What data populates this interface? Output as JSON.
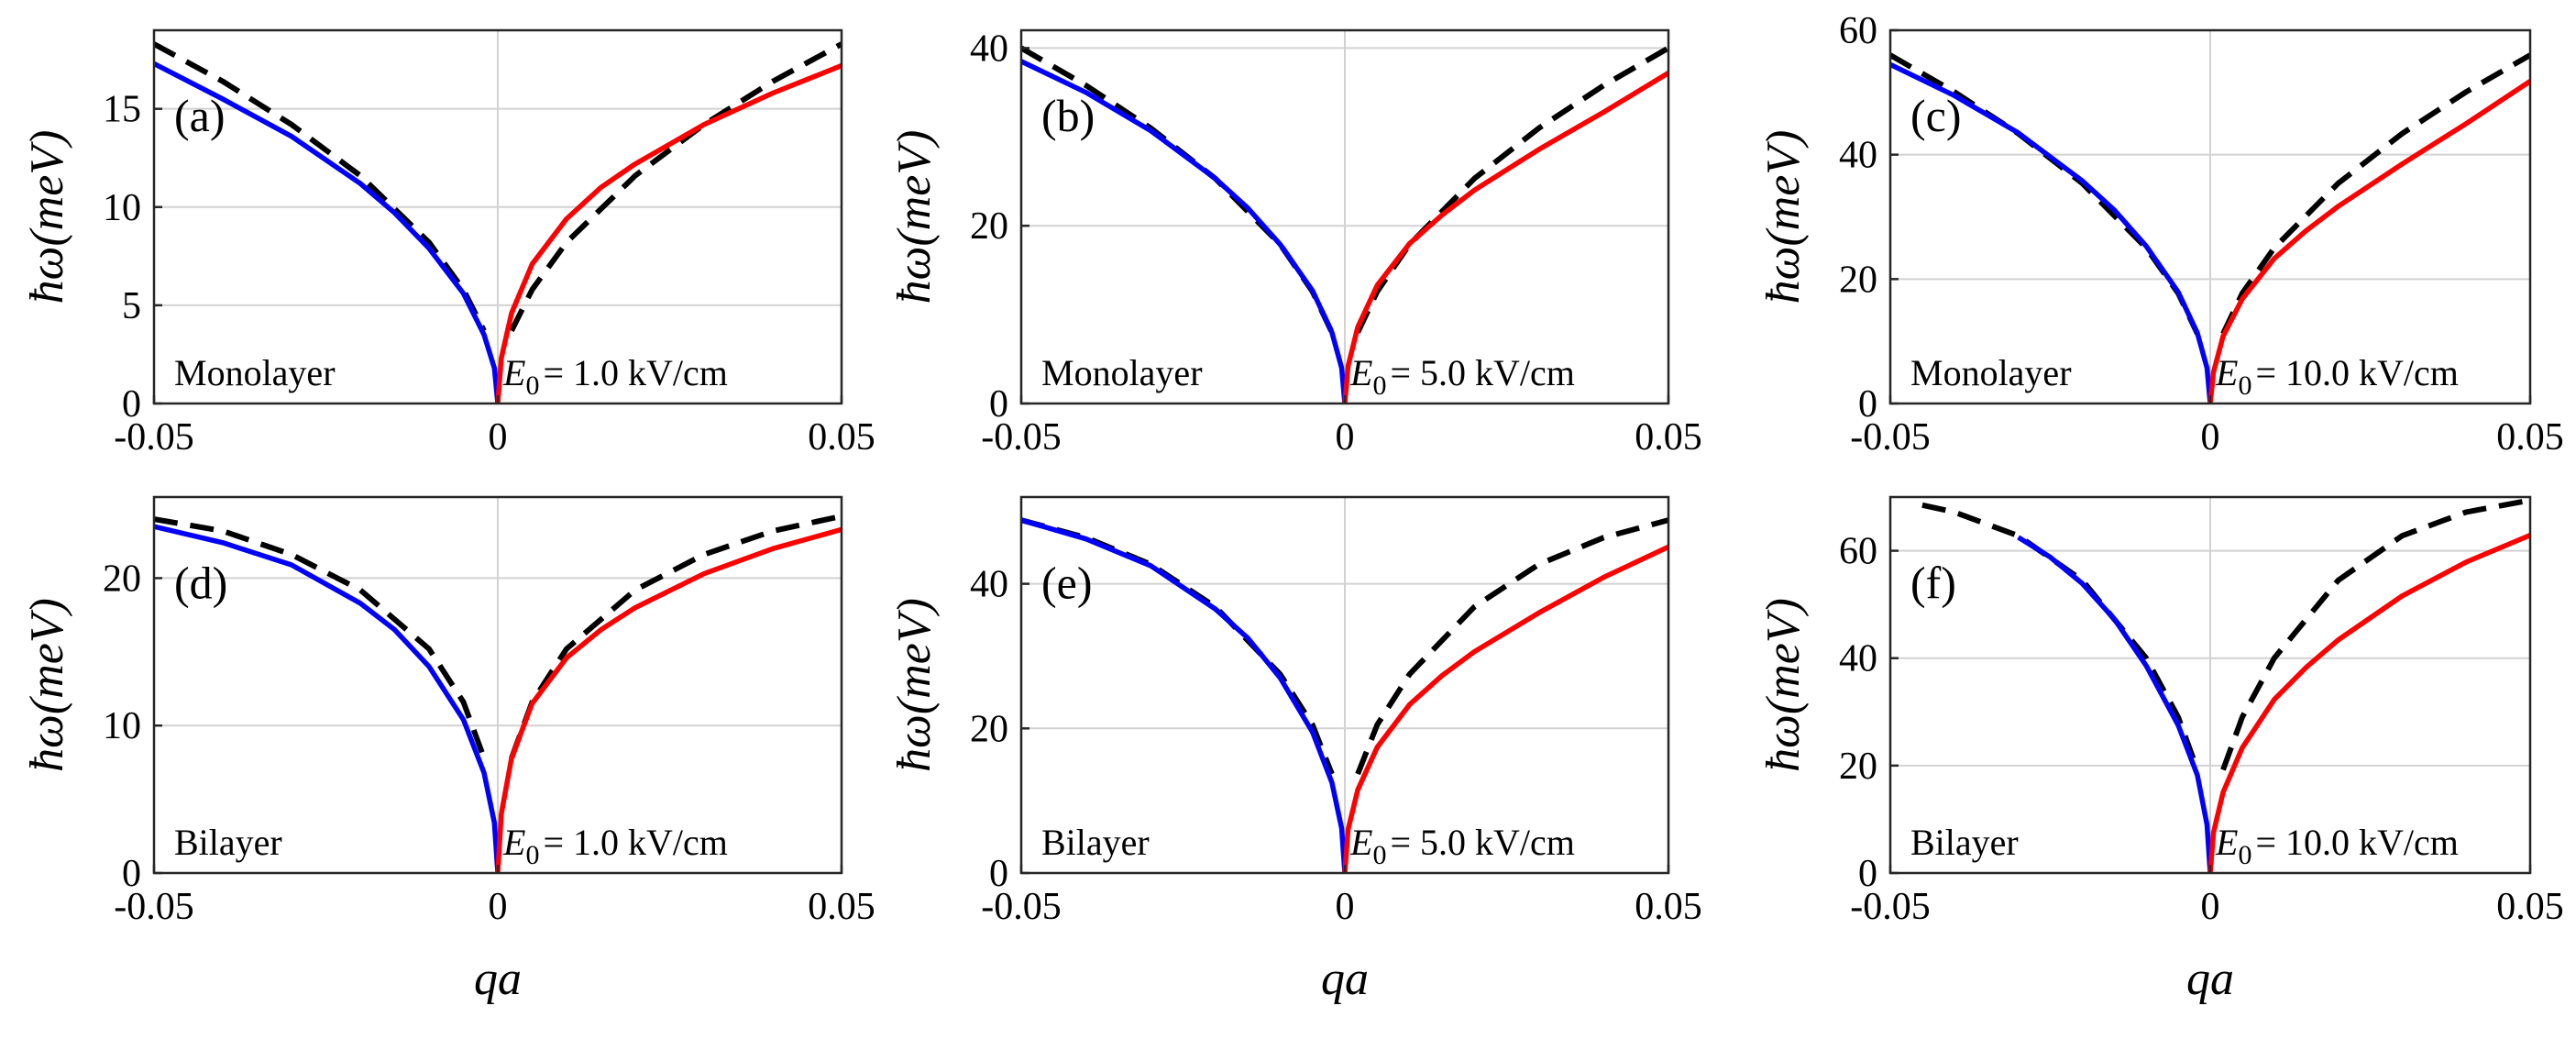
{
  "chart_data": [
    {
      "type": "line",
      "panel_label": "(a)",
      "layer_label": "Monolayer",
      "field_prefix": "E",
      "field_sub": "0",
      "field_text": "= 1.0 kV/cm",
      "ylabel": "ħω(meV)",
      "xlabel": "",
      "xlim": [
        -0.05,
        0.05
      ],
      "ylim": [
        0,
        19
      ],
      "xticks": [
        -0.05,
        0,
        0.05
      ],
      "xtick_labels": [
        "-0.05",
        "0",
        "0.05"
      ],
      "yticks": [
        0,
        5,
        10,
        15
      ],
      "ytick_labels": [
        "0",
        "5",
        "10",
        "15"
      ],
      "grid": true,
      "series": [
        {
          "name": "negative qa branch",
          "color": "#0000ff",
          "style": "solid",
          "x": [
            -0.05,
            -0.04,
            -0.03,
            -0.02,
            -0.015,
            -0.01,
            -0.005,
            -0.002,
            -0.0005,
            0
          ],
          "y": [
            17.3,
            15.5,
            13.6,
            11.2,
            9.7,
            7.9,
            5.6,
            3.5,
            1.8,
            0
          ]
        },
        {
          "name": "positive qa branch",
          "color": "#ff0000",
          "style": "solid",
          "x": [
            0,
            0.0005,
            0.002,
            0.005,
            0.01,
            0.015,
            0.02,
            0.03,
            0.04,
            0.05
          ],
          "y": [
            0,
            2.3,
            4.6,
            7.1,
            9.4,
            11.0,
            12.2,
            14.2,
            15.8,
            17.2
          ]
        },
        {
          "name": "reference left",
          "color": "#000000",
          "style": "dashed",
          "x": [
            -0.05,
            -0.04,
            -0.03,
            -0.02,
            -0.01,
            -0.005,
            -0.002
          ],
          "y": [
            18.3,
            16.4,
            14.2,
            11.6,
            8.2,
            5.8,
            3.7
          ]
        },
        {
          "name": "reference right",
          "color": "#000000",
          "style": "dashed",
          "x": [
            0.002,
            0.005,
            0.01,
            0.02,
            0.03,
            0.04,
            0.05
          ],
          "y": [
            3.7,
            5.8,
            8.2,
            11.6,
            14.2,
            16.4,
            18.3
          ]
        }
      ]
    },
    {
      "type": "line",
      "panel_label": "(b)",
      "layer_label": "Monolayer",
      "field_prefix": "E",
      "field_sub": "0",
      "field_text": "= 5.0 kV/cm",
      "ylabel": "ħω(meV)",
      "xlabel": "",
      "xlim": [
        -0.05,
        0.05
      ],
      "ylim": [
        0,
        42
      ],
      "xticks": [
        -0.05,
        0,
        0.05
      ],
      "xtick_labels": [
        "-0.05",
        "0",
        "0.05"
      ],
      "yticks": [
        0,
        20,
        40
      ],
      "ytick_labels": [
        "0",
        "20",
        "40"
      ],
      "grid": true,
      "series": [
        {
          "name": "negative qa branch",
          "color": "#0000ff",
          "style": "solid",
          "x": [
            -0.05,
            -0.04,
            -0.03,
            -0.02,
            -0.015,
            -0.01,
            -0.005,
            -0.002,
            -0.0005,
            0
          ],
          "y": [
            38.5,
            35.0,
            30.7,
            25.3,
            22.0,
            17.9,
            12.7,
            8.0,
            4.0,
            0
          ]
        },
        {
          "name": "positive qa branch",
          "color": "#ff0000",
          "style": "solid",
          "x": [
            0,
            0.0005,
            0.002,
            0.005,
            0.01,
            0.015,
            0.02,
            0.03,
            0.04,
            0.05
          ],
          "y": [
            0,
            4.2,
            8.6,
            13.3,
            18.0,
            21.2,
            24.0,
            28.6,
            32.8,
            37.2
          ]
        },
        {
          "name": "reference left",
          "color": "#000000",
          "style": "dashed",
          "x": [
            -0.05,
            -0.04,
            -0.03,
            -0.02,
            -0.01,
            -0.005,
            -0.002
          ],
          "y": [
            40.0,
            35.8,
            31.0,
            25.3,
            17.9,
            12.6,
            8.0
          ]
        },
        {
          "name": "reference right",
          "color": "#000000",
          "style": "dashed",
          "x": [
            0.002,
            0.005,
            0.01,
            0.02,
            0.03,
            0.04,
            0.05
          ],
          "y": [
            8.0,
            12.6,
            17.9,
            25.3,
            31.0,
            35.8,
            40.0
          ]
        }
      ]
    },
    {
      "type": "line",
      "panel_label": "(c)",
      "layer_label": "Monolayer",
      "field_prefix": "E",
      "field_sub": "0",
      "field_text": "= 10.0 kV/cm",
      "ylabel": "ħω(meV)",
      "xlabel": "",
      "xlim": [
        -0.05,
        0.05
      ],
      "ylim": [
        0,
        60
      ],
      "xticks": [
        -0.05,
        0,
        0.05
      ],
      "xtick_labels": [
        "-0.05",
        "0",
        "0.05"
      ],
      "yticks": [
        0,
        20,
        40,
        60
      ],
      "ytick_labels": [
        "0",
        "20",
        "40",
        "60"
      ],
      "grid": true,
      "series": [
        {
          "name": "negative qa branch",
          "color": "#0000ff",
          "style": "solid",
          "x": [
            -0.05,
            -0.04,
            -0.03,
            -0.02,
            -0.015,
            -0.01,
            -0.005,
            -0.002,
            -0.0005,
            0
          ],
          "y": [
            54.5,
            49.5,
            43.5,
            35.8,
            31.1,
            25.3,
            17.9,
            11.3,
            5.7,
            0
          ]
        },
        {
          "name": "positive qa branch",
          "color": "#ff0000",
          "style": "solid",
          "x": [
            0,
            0.0005,
            0.002,
            0.005,
            0.01,
            0.015,
            0.02,
            0.03,
            0.04,
            0.05
          ],
          "y": [
            0,
            5.0,
            10.8,
            16.8,
            23.3,
            27.8,
            31.7,
            38.5,
            45.0,
            51.8
          ]
        },
        {
          "name": "reference left",
          "color": "#000000",
          "style": "dashed",
          "x": [
            -0.05,
            -0.04,
            -0.03,
            -0.02,
            -0.01,
            -0.005,
            -0.002
          ],
          "y": [
            56.0,
            50.1,
            43.4,
            35.4,
            25.0,
            17.7,
            11.2
          ]
        },
        {
          "name": "reference right",
          "color": "#000000",
          "style": "dashed",
          "x": [
            0.002,
            0.005,
            0.01,
            0.02,
            0.03,
            0.04,
            0.05
          ],
          "y": [
            11.2,
            17.7,
            25.0,
            35.4,
            43.4,
            50.1,
            56.0
          ]
        }
      ]
    },
    {
      "type": "line",
      "panel_label": "(d)",
      "layer_label": "Bilayer",
      "field_prefix": "E",
      "field_sub": "0",
      "field_text": "= 1.0 kV/cm",
      "ylabel": "ħω(meV)",
      "xlabel": "qa",
      "xlim": [
        -0.05,
        0.05
      ],
      "ylim": [
        0,
        25.5
      ],
      "xticks": [
        -0.05,
        0,
        0.05
      ],
      "xtick_labels": [
        "-0.05",
        "0",
        "0.05"
      ],
      "yticks": [
        0,
        10,
        20
      ],
      "ytick_labels": [
        "0",
        "10",
        "20"
      ],
      "grid": true,
      "series": [
        {
          "name": "negative qa branch",
          "color": "#0000ff",
          "style": "solid",
          "x": [
            -0.05,
            -0.04,
            -0.03,
            -0.02,
            -0.015,
            -0.01,
            -0.005,
            -0.002,
            -0.0005,
            0
          ],
          "y": [
            23.5,
            22.4,
            20.9,
            18.3,
            16.5,
            14.0,
            10.4,
            6.8,
            3.4,
            0
          ]
        },
        {
          "name": "positive qa branch",
          "color": "#ff0000",
          "style": "solid",
          "x": [
            0,
            0.0005,
            0.002,
            0.005,
            0.01,
            0.015,
            0.02,
            0.03,
            0.04,
            0.05
          ],
          "y": [
            0,
            4.0,
            7.8,
            11.5,
            14.6,
            16.5,
            18.0,
            20.3,
            22.0,
            23.3
          ]
        },
        {
          "name": "reference left",
          "color": "#000000",
          "style": "dashed",
          "x": [
            -0.05,
            -0.04,
            -0.03,
            -0.02,
            -0.01,
            -0.005,
            -0.002
          ],
          "y": [
            24.0,
            23.2,
            21.6,
            19.2,
            15.2,
            11.6,
            7.8
          ]
        },
        {
          "name": "reference right",
          "color": "#000000",
          "style": "dashed",
          "x": [
            0.002,
            0.005,
            0.01,
            0.02,
            0.03,
            0.04,
            0.05
          ],
          "y": [
            7.8,
            11.6,
            15.2,
            19.2,
            21.6,
            23.2,
            24.2
          ]
        }
      ]
    },
    {
      "type": "line",
      "panel_label": "(e)",
      "layer_label": "Bilayer",
      "field_prefix": "E",
      "field_sub": "0",
      "field_text": "= 5.0 kV/cm",
      "ylabel": "ħω(meV)",
      "xlabel": "qa",
      "xlim": [
        -0.05,
        0.05
      ],
      "ylim": [
        0,
        52
      ],
      "xticks": [
        -0.05,
        0,
        0.05
      ],
      "xtick_labels": [
        "-0.05",
        "0",
        "0.05"
      ],
      "yticks": [
        0,
        20,
        40
      ],
      "ytick_labels": [
        "0",
        "20",
        "40"
      ],
      "grid": true,
      "series": [
        {
          "name": "negative qa branch",
          "color": "#0000ff",
          "style": "solid",
          "x": [
            -0.05,
            -0.04,
            -0.03,
            -0.02,
            -0.015,
            -0.01,
            -0.005,
            -0.002,
            -0.0005,
            0
          ],
          "y": [
            48.8,
            46.2,
            42.5,
            36.5,
            32.5,
            27.0,
            19.5,
            12.5,
            6.2,
            0
          ]
        },
        {
          "name": "positive qa branch",
          "color": "#ff0000",
          "style": "solid",
          "x": [
            0,
            0.0005,
            0.002,
            0.005,
            0.01,
            0.015,
            0.02,
            0.03,
            0.04,
            0.05
          ],
          "y": [
            0,
            6.0,
            11.5,
            17.4,
            23.3,
            27.3,
            30.6,
            36.0,
            40.9,
            45.1
          ]
        },
        {
          "name": "reference left",
          "color": "#000000",
          "style": "dashed",
          "x": [
            -0.05,
            -0.04,
            -0.03,
            -0.02,
            -0.01,
            -0.005,
            -0.002
          ],
          "y": [
            48.8,
            46.4,
            42.7,
            36.8,
            27.5,
            20.5,
            13.7
          ]
        },
        {
          "name": "reference right",
          "color": "#000000",
          "style": "dashed",
          "x": [
            0.002,
            0.005,
            0.01,
            0.02,
            0.03,
            0.04,
            0.05
          ],
          "y": [
            13.7,
            20.5,
            27.5,
            36.8,
            42.7,
            46.4,
            48.8
          ]
        }
      ]
    },
    {
      "type": "line",
      "panel_label": "(f)",
      "layer_label": "Bilayer",
      "field_prefix": "E",
      "field_sub": "0",
      "field_text": "= 10.0 kV/cm",
      "ylabel": "ħω(meV)",
      "xlabel": "qa",
      "xlim": [
        -0.05,
        0.05
      ],
      "ylim": [
        0,
        70
      ],
      "xticks": [
        -0.05,
        0,
        0.05
      ],
      "xtick_labels": [
        "-0.05",
        "0",
        "0.05"
      ],
      "yticks": [
        0,
        20,
        40,
        60
      ],
      "ytick_labels": [
        "0",
        "20",
        "40",
        "60"
      ],
      "grid": true,
      "series": [
        {
          "name": "negative qa branch",
          "color": "#0000ff",
          "style": "solid",
          "x": [
            -0.03,
            -0.025,
            -0.02,
            -0.015,
            -0.01,
            -0.005,
            -0.002,
            -0.0005,
            0
          ],
          "y": [
            62.5,
            58.8,
            53.9,
            47.3,
            38.6,
            27.5,
            18.2,
            9.0,
            0
          ]
        },
        {
          "name": "positive qa branch",
          "color": "#ff0000",
          "style": "solid",
          "x": [
            0,
            0.0005,
            0.002,
            0.005,
            0.01,
            0.015,
            0.02,
            0.03,
            0.04,
            0.05
          ],
          "y": [
            0,
            7.5,
            15.0,
            23.3,
            32.3,
            38.3,
            43.4,
            51.6,
            57.9,
            62.9
          ]
        },
        {
          "name": "reference left",
          "color": "#000000",
          "style": "dashed",
          "x": [
            -0.045,
            -0.04,
            -0.03,
            -0.02,
            -0.01,
            -0.005,
            -0.002
          ],
          "y": [
            68.5,
            67.2,
            62.8,
            54.5,
            40.0,
            29.0,
            19.2
          ]
        },
        {
          "name": "reference right",
          "color": "#000000",
          "style": "dashed",
          "x": [
            0.002,
            0.005,
            0.01,
            0.02,
            0.03,
            0.04,
            0.05
          ],
          "y": [
            19.2,
            29.0,
            40.0,
            54.5,
            62.8,
            67.2,
            69.4
          ]
        }
      ]
    }
  ]
}
